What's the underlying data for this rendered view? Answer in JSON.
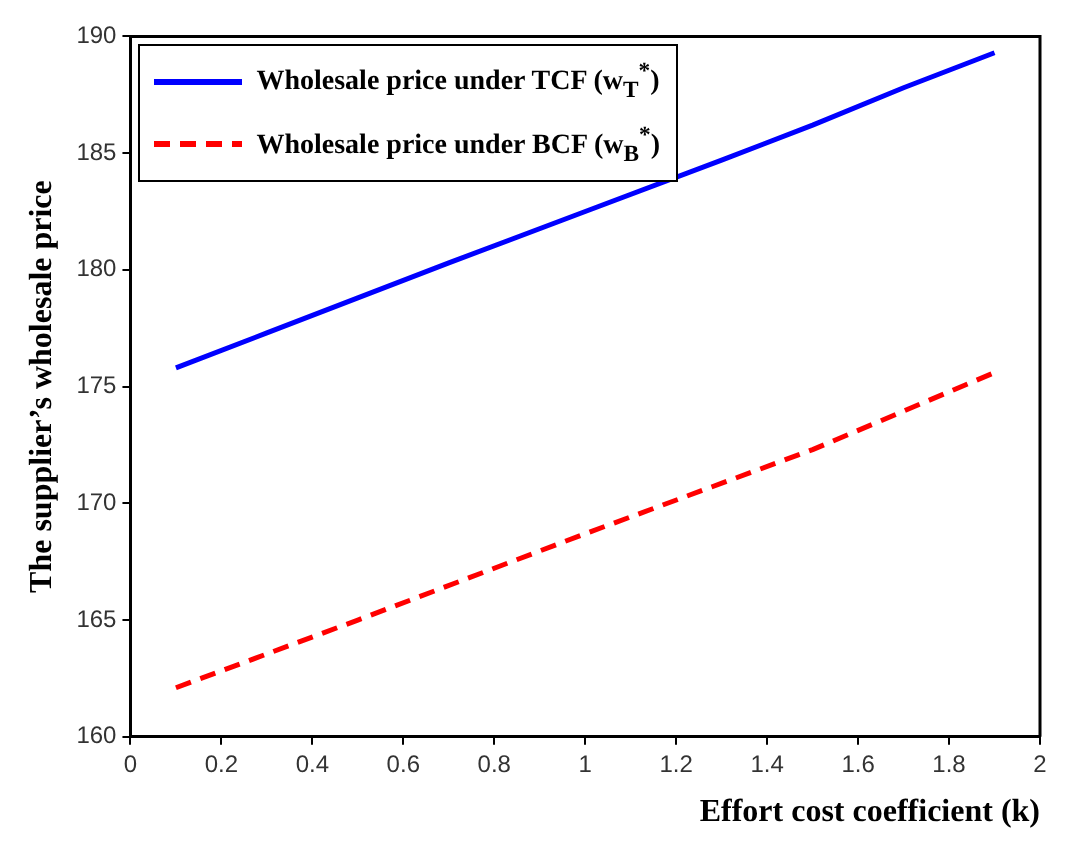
{
  "chart_data": {
    "type": "line",
    "xlabel": "Effort cost coefficient (k)",
    "ylabel": "The supplier’s wholesale price",
    "xlim": [
      0,
      2
    ],
    "xticks": [
      0,
      0.2,
      0.4,
      0.6,
      0.8,
      1,
      1.2,
      1.4,
      1.6,
      1.8,
      2
    ],
    "ylim": [
      160,
      190
    ],
    "yticks": [
      160,
      165,
      170,
      175,
      180,
      185,
      190
    ],
    "grid": false,
    "legend": "top left",
    "marker": "none",
    "series": [
      {
        "name": "Wholesale price under TCF (w$_{T}$$^{*}$)",
        "color": "#0000ff",
        "line_style": "solid",
        "x": [
          0.1,
          0.3,
          0.5,
          0.7,
          1,
          1.3,
          1.5,
          1.7,
          1.9
        ],
        "values": [
          175.8,
          177.3,
          178.8,
          180.3,
          182.5,
          184.7,
          186.2,
          187.8,
          189.3
        ]
      },
      {
        "name": "Wholesale price under BCF (w$_{B}$$^{*}$)",
        "color": "#ff0000",
        "line_style": "dashed",
        "x": [
          0.1,
          0.5,
          1,
          1.5,
          1.9
        ],
        "values": [
          162.1,
          165.0,
          168.7,
          172.3,
          175.6
        ]
      }
    ]
  }
}
